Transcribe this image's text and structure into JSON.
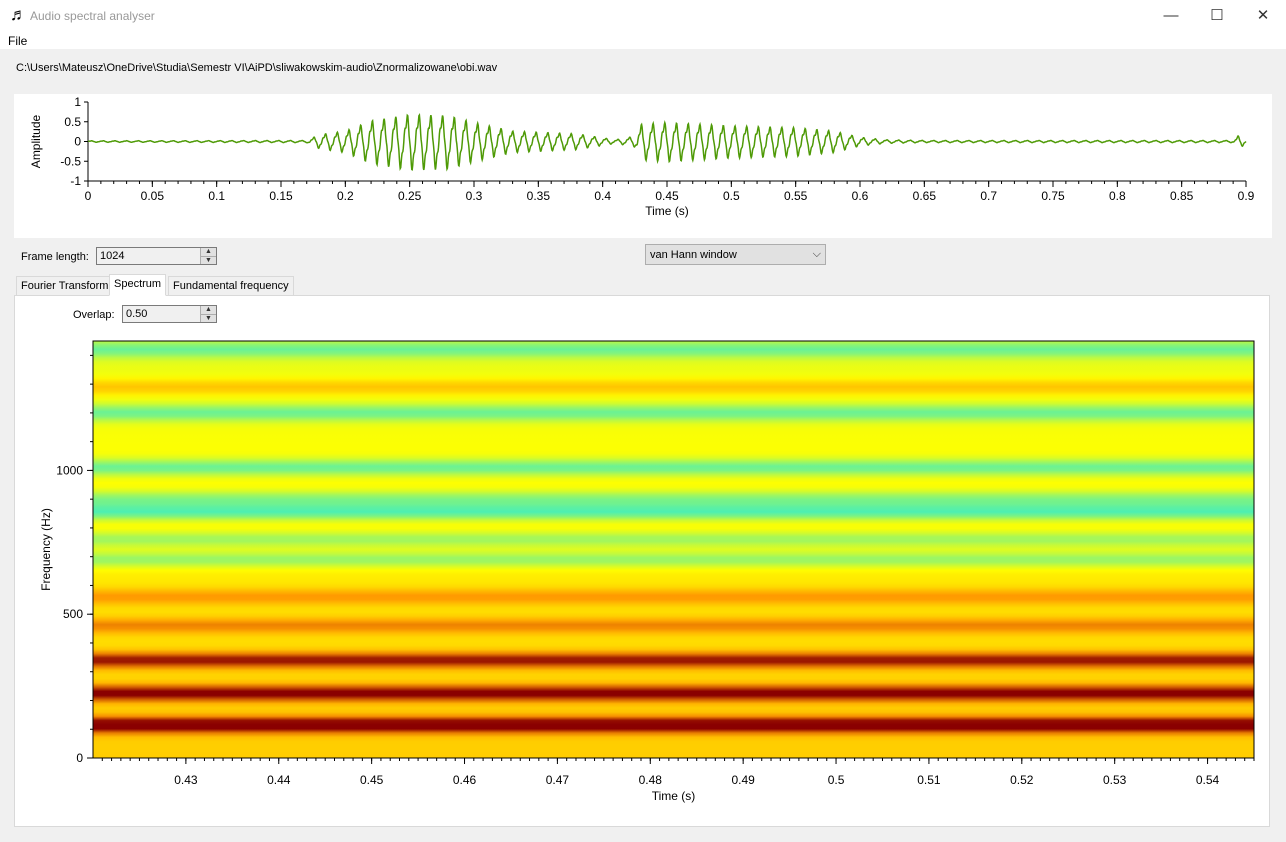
{
  "window": {
    "title": "Audio spectral analyser",
    "icon": "music-note-icon",
    "minimize_glyph": "—",
    "maximize_glyph": "☐",
    "close_glyph": "✕"
  },
  "menu": {
    "file_label": "File"
  },
  "file_path": "C:\\Users\\Mateusz\\OneDrive\\Studia\\Semestr VI\\AiPD\\sliwakowskim-audio\\Znormalizowane\\obi.wav",
  "controls": {
    "frame_length_label": "Frame length:",
    "frame_length_value": "1024",
    "window_type": "van Hann window",
    "overlap_label": "Overlap:",
    "overlap_value": "0.50"
  },
  "tabs": [
    {
      "label": "Fourier Transform",
      "active": false
    },
    {
      "label": "Spectrum",
      "active": true
    },
    {
      "label": "Fundamental frequency",
      "active": false
    }
  ],
  "chart_data": [
    {
      "type": "line",
      "ylabel": "Amplitude",
      "xlabel": "Time (s)",
      "xlim": [
        0,
        0.9
      ],
      "ylim": [
        -1,
        1
      ],
      "yticks": [
        "1",
        "0.5",
        "0",
        "-0.5",
        "-1"
      ],
      "xticks": [
        "0",
        "0.05",
        "0.1",
        "0.15",
        "0.2",
        "0.25",
        "0.3",
        "0.35",
        "0.4",
        "0.45",
        "0.5",
        "0.55",
        "0.6",
        "0.65",
        "0.7",
        "0.75",
        "0.8",
        "0.85",
        "0.9"
      ],
      "color": "#4e9a06",
      "envelope": [
        {
          "t": 0.0,
          "a": 0.02
        },
        {
          "t": 0.17,
          "a": 0.03
        },
        {
          "t": 0.18,
          "a": 0.2
        },
        {
          "t": 0.2,
          "a": 0.3
        },
        {
          "t": 0.22,
          "a": 0.6
        },
        {
          "t": 0.25,
          "a": 0.78
        },
        {
          "t": 0.28,
          "a": 0.75
        },
        {
          "t": 0.3,
          "a": 0.55
        },
        {
          "t": 0.33,
          "a": 0.3
        },
        {
          "t": 0.38,
          "a": 0.22
        },
        {
          "t": 0.41,
          "a": 0.05
        },
        {
          "t": 0.425,
          "a": 0.15
        },
        {
          "t": 0.43,
          "a": 0.5
        },
        {
          "t": 0.45,
          "a": 0.55
        },
        {
          "t": 0.5,
          "a": 0.45
        },
        {
          "t": 0.55,
          "a": 0.4
        },
        {
          "t": 0.58,
          "a": 0.3
        },
        {
          "t": 0.6,
          "a": 0.12
        },
        {
          "t": 0.62,
          "a": 0.05
        },
        {
          "t": 0.65,
          "a": 0.03
        },
        {
          "t": 0.89,
          "a": 0.03
        },
        {
          "t": 0.895,
          "a": 0.2
        },
        {
          "t": 0.9,
          "a": 0.04
        }
      ]
    },
    {
      "type": "heatmap",
      "ylabel": "Frequency (Hz)",
      "xlabel": "Time (s)",
      "xlim": [
        0.42,
        0.545
      ],
      "ylim": [
        0,
        1450
      ],
      "yticks": [
        "0",
        "500",
        "1000"
      ],
      "xticks": [
        "0.43",
        "0.44",
        "0.45",
        "0.46",
        "0.47",
        "0.48",
        "0.49",
        "0.5",
        "0.51",
        "0.52",
        "0.53",
        "0.54"
      ],
      "colormap": [
        "#00e8ff",
        "#ffff00",
        "#ff9a00",
        "#8a0000"
      ],
      "bands": [
        {
          "f": 115,
          "intensity": 1.0
        },
        {
          "f": 225,
          "intensity": 0.9
        },
        {
          "f": 340,
          "intensity": 0.8
        },
        {
          "f": 460,
          "intensity": 0.45
        },
        {
          "f": 560,
          "intensity": 0.4
        },
        {
          "f": 690,
          "intensity": -0.5
        },
        {
          "f": 760,
          "intensity": -0.45
        },
        {
          "f": 855,
          "intensity": -0.7
        },
        {
          "f": 900,
          "intensity": -0.5
        },
        {
          "f": 1010,
          "intensity": -0.6
        },
        {
          "f": 1200,
          "intensity": -0.55
        },
        {
          "f": 1290,
          "intensity": 0.35
        },
        {
          "f": 1420,
          "intensity": -0.5
        }
      ]
    }
  ]
}
